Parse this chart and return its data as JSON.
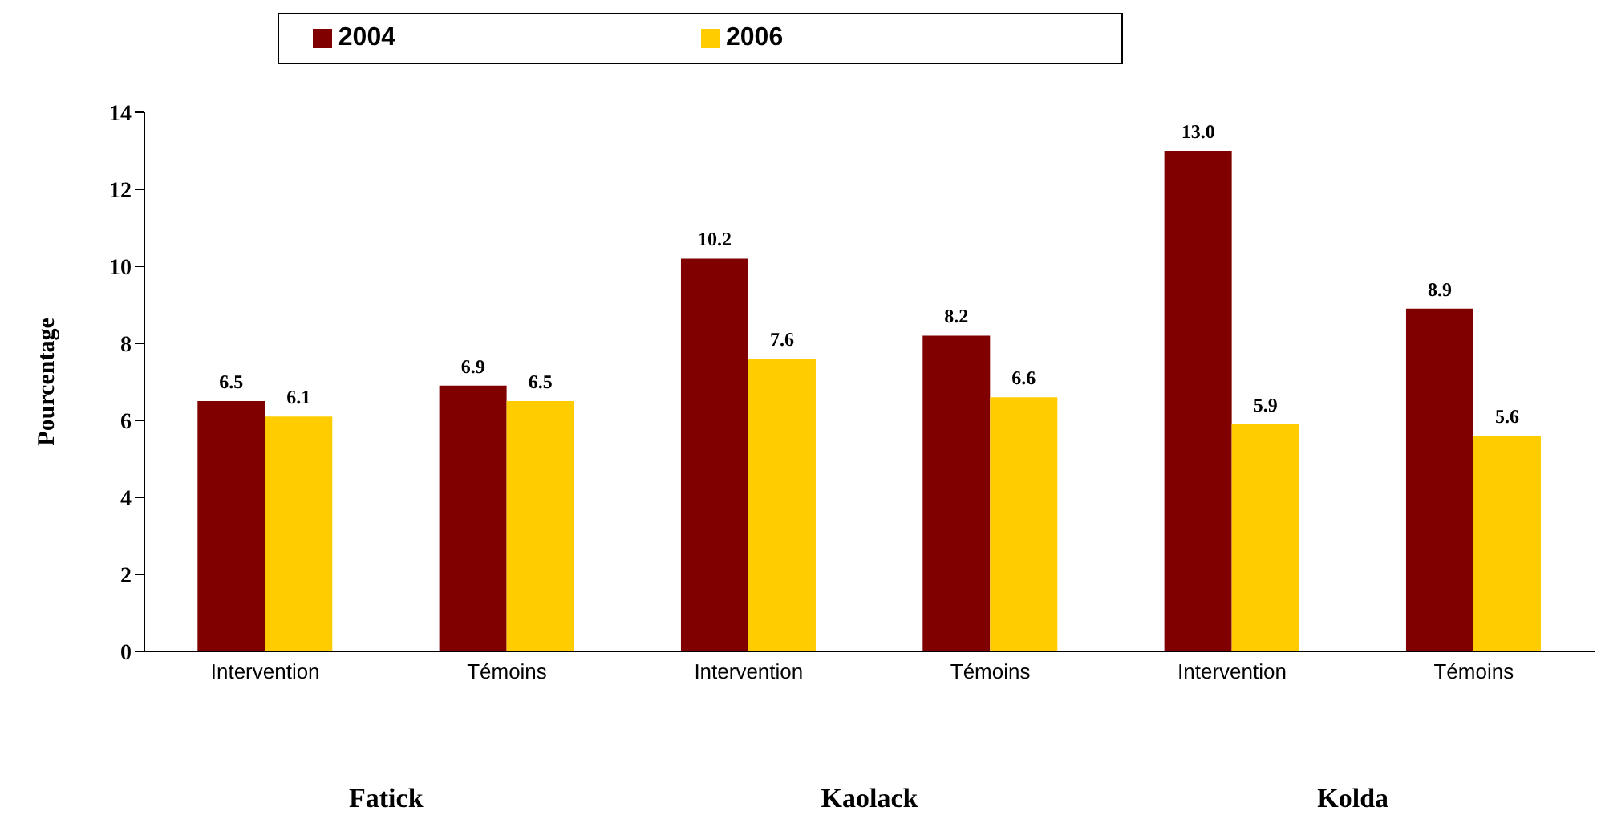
{
  "chart_data": {
    "type": "bar",
    "ylabel": "Pourcentage",
    "categories": [
      "Intervention",
      "Témoins",
      "Intervention",
      "Témoins",
      "Intervention",
      "Témoins"
    ],
    "series": [
      {
        "name": "2004",
        "color": "#800000",
        "values": [
          6.5,
          6.9,
          10.2,
          8.2,
          13.0,
          8.9
        ]
      },
      {
        "name": "2006",
        "color": "#ffcc00",
        "values": [
          6.1,
          6.5,
          7.6,
          6.6,
          5.9,
          5.6
        ]
      }
    ],
    "value_labels": [
      [
        "6.5",
        "6.9",
        "10.2",
        "8.2",
        "13.0",
        "8.9"
      ],
      [
        "6.1",
        "6.5",
        "7.6",
        "6.6",
        "5.9",
        "5.6"
      ]
    ],
    "ylim": [
      0,
      14
    ],
    "yticks": [
      0,
      2,
      4,
      6,
      8,
      10,
      12,
      14
    ],
    "grid": false,
    "legend": "top",
    "annotations": [
      "Fatick",
      "Kaolack",
      "Kolda"
    ]
  }
}
